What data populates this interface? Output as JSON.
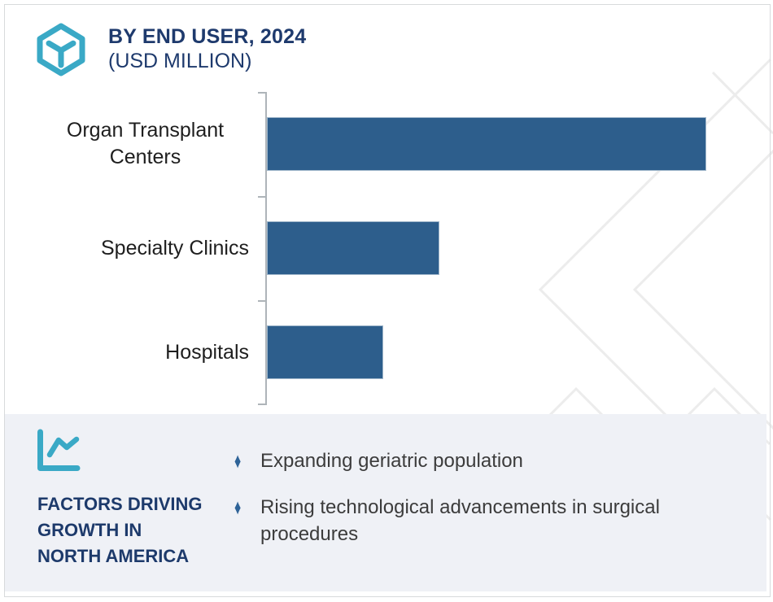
{
  "header": {
    "logo_icon": "hexagon-cube-logo-icon",
    "title": "BY END USER, 2024",
    "subtitle": "(USD MILLION)"
  },
  "chart_data": {
    "type": "bar",
    "orientation": "horizontal",
    "title": "BY END USER, 2024",
    "unit": "USD MILLION",
    "categories": [
      "Organ Transplant Centers",
      "Specialty Clinics",
      "Hospitals"
    ],
    "values_pct_of_longest_bar": [
      100,
      39.3,
      26.5
    ],
    "value_labels_shown": false,
    "grid": false,
    "legend": false,
    "bar_color": "#2d5e8c",
    "category_axis_side": "left"
  },
  "factors_panel": {
    "icon": "line-chart-icon",
    "heading": "FACTORS DRIVING\nGROWTH IN\nNORTH AMERICA",
    "bullet_marker": "♦",
    "bullets": [
      "Expanding geriatric population",
      "Rising technological advancements in surgical procedures"
    ]
  },
  "watermark": {
    "icon": "chevron-watermark"
  },
  "colors": {
    "teal_accent": "#3aa9c6",
    "navy_heading": "#1e3a6d",
    "bar_blue": "#2d5e8c",
    "bullet_blue": "#2e6398",
    "panel_background": "#eff1f6",
    "body_text": "#3c3c3c",
    "watermark_gray": "#ececec",
    "axis_gray": "#aeb4b9",
    "card_border": "#d8dadc"
  }
}
